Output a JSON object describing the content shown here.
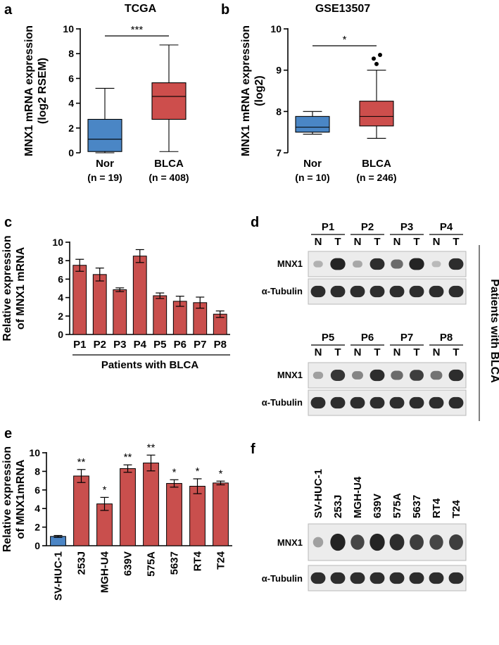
{
  "colors": {
    "box_normal": "#4a86c5",
    "box_tumor": "#cd4e4c",
    "bar_tumor": "#c94f4d",
    "bar_control": "#4b85c5",
    "axis": "#000000",
    "blot_bg": "#ececec",
    "blot_band": "#1a1a1a"
  },
  "panels": {
    "a": {
      "letter": "a"
    },
    "b": {
      "letter": "b"
    },
    "c": {
      "letter": "c"
    },
    "d": {
      "letter": "d"
    },
    "e": {
      "letter": "e"
    },
    "f": {
      "letter": "f"
    }
  },
  "chart_data": [
    {
      "id": "a",
      "type": "box",
      "title": "TCGA",
      "ylabel": [
        "MNX1 mRNA expression",
        "(log2 RSEM)"
      ],
      "ylim": [
        0,
        10
      ],
      "yticks": [
        "0",
        "2",
        "4",
        "6",
        "8",
        "10"
      ],
      "ytick_values": [
        0,
        2,
        4,
        6,
        8,
        10
      ],
      "significance": "***",
      "groups": [
        {
          "name": "Nor",
          "n": "(n = 19)",
          "min": 0,
          "q1": 0.1,
          "median": 1.1,
          "q3": 2.7,
          "max": 5.2,
          "color": "#4a86c5",
          "outliers": []
        },
        {
          "name": "BLCA",
          "n": "(n = 408)",
          "min": 0.1,
          "q1": 2.7,
          "median": 4.55,
          "q3": 5.65,
          "max": 8.7,
          "color": "#cd4e4c",
          "outliers": []
        }
      ]
    },
    {
      "id": "b",
      "type": "box",
      "title": "GSE13507",
      "ylabel": [
        "MNX1 mRNA expression",
        "(log2)"
      ],
      "ylim": [
        7,
        10
      ],
      "yticks": [
        "7",
        "8",
        "9",
        "10"
      ],
      "ytick_values": [
        7,
        8,
        9,
        10
      ],
      "significance": "*",
      "groups": [
        {
          "name": "Nor",
          "n": "(n = 10)",
          "min": 7.45,
          "q1": 7.5,
          "median": 7.62,
          "q3": 7.88,
          "max": 8.0,
          "color": "#4a86c5",
          "outliers": []
        },
        {
          "name": "BLCA",
          "n": "(n = 246)",
          "min": 7.35,
          "q1": 7.65,
          "median": 7.88,
          "q3": 8.25,
          "max": 9.0,
          "color": "#cd4e4c",
          "outliers": [
            9.28,
            9.37,
            9.15
          ]
        }
      ]
    },
    {
      "id": "c",
      "type": "bar",
      "ylabel": [
        "Relative expression",
        "of MNX1 mRNA"
      ],
      "ylim": [
        0,
        10
      ],
      "yticks": [
        "0",
        "2",
        "4",
        "6",
        "8",
        "10"
      ],
      "ytick_values": [
        0,
        2,
        4,
        6,
        8,
        10
      ],
      "categories": [
        "P1",
        "P2",
        "P3",
        "P4",
        "P5",
        "P6",
        "P7",
        "P8"
      ],
      "values": [
        7.5,
        6.5,
        4.85,
        8.5,
        4.2,
        3.6,
        3.45,
        2.2
      ],
      "errors": [
        0.65,
        0.7,
        0.2,
        0.7,
        0.3,
        0.55,
        0.6,
        0.35
      ],
      "xgroup_label": "Patients with BLCA"
    },
    {
      "id": "e",
      "type": "bar",
      "ylabel": [
        "Relative expression",
        "of MNX1mRNA"
      ],
      "ylim": [
        0,
        10
      ],
      "yticks": [
        "0",
        "2",
        "4",
        "6",
        "8",
        "10"
      ],
      "ytick_values": [
        0,
        2,
        4,
        6,
        8,
        10
      ],
      "categories": [
        "SV-HUC-1",
        "253J",
        "MGH-U4",
        "639V",
        "575A",
        "5637",
        "RT4",
        "T24"
      ],
      "values": [
        1.0,
        7.5,
        4.5,
        8.3,
        8.9,
        6.7,
        6.4,
        6.75
      ],
      "errors": [
        0.1,
        0.7,
        0.7,
        0.4,
        0.85,
        0.4,
        0.8,
        0.2
      ],
      "significance": [
        "",
        "**",
        "*",
        "**",
        "**",
        "*",
        "*",
        "*"
      ]
    }
  ],
  "blots": {
    "d": {
      "side_label": "Patients with BLCA",
      "rows": [
        {
          "patients": [
            "P1",
            "P2",
            "P3",
            "P4"
          ],
          "lanes": [
            "N",
            "T",
            "N",
            "T",
            "N",
            "T",
            "N",
            "T"
          ],
          "mnx1_label": "MNX1",
          "tubulin_label": "α-Tubulin",
          "mnx1_intensity": [
            0.15,
            0.95,
            0.2,
            0.9,
            0.55,
            0.95,
            0.1,
            0.9
          ],
          "tubulin_intensity": [
            0.9,
            0.9,
            0.9,
            0.9,
            0.9,
            0.9,
            0.9,
            0.9
          ]
        },
        {
          "patients": [
            "P5",
            "P6",
            "P7",
            "P8"
          ],
          "lanes": [
            "N",
            "T",
            "N",
            "T",
            "N",
            "T",
            "N",
            "T"
          ],
          "mnx1_label": "MNX1",
          "tubulin_label": "α-Tubulin",
          "mnx1_intensity": [
            0.25,
            0.85,
            0.4,
            0.9,
            0.55,
            0.8,
            0.5,
            0.9
          ],
          "tubulin_intensity": [
            0.9,
            0.9,
            0.9,
            0.9,
            0.9,
            0.9,
            0.9,
            0.9
          ]
        }
      ]
    },
    "f": {
      "cell_lines": [
        "SV-HUC-1",
        "253J",
        "MGH-U4",
        "639V",
        "575A",
        "5637",
        "RT4",
        "T24"
      ],
      "mnx1_label": "MNX1",
      "tubulin_label": "α-Tubulin",
      "mnx1_intensity": [
        0.25,
        0.95,
        0.75,
        0.95,
        0.9,
        0.8,
        0.75,
        0.8
      ],
      "tubulin_intensity": [
        0.9,
        0.9,
        0.9,
        0.9,
        0.9,
        0.9,
        0.9,
        0.9
      ]
    }
  }
}
